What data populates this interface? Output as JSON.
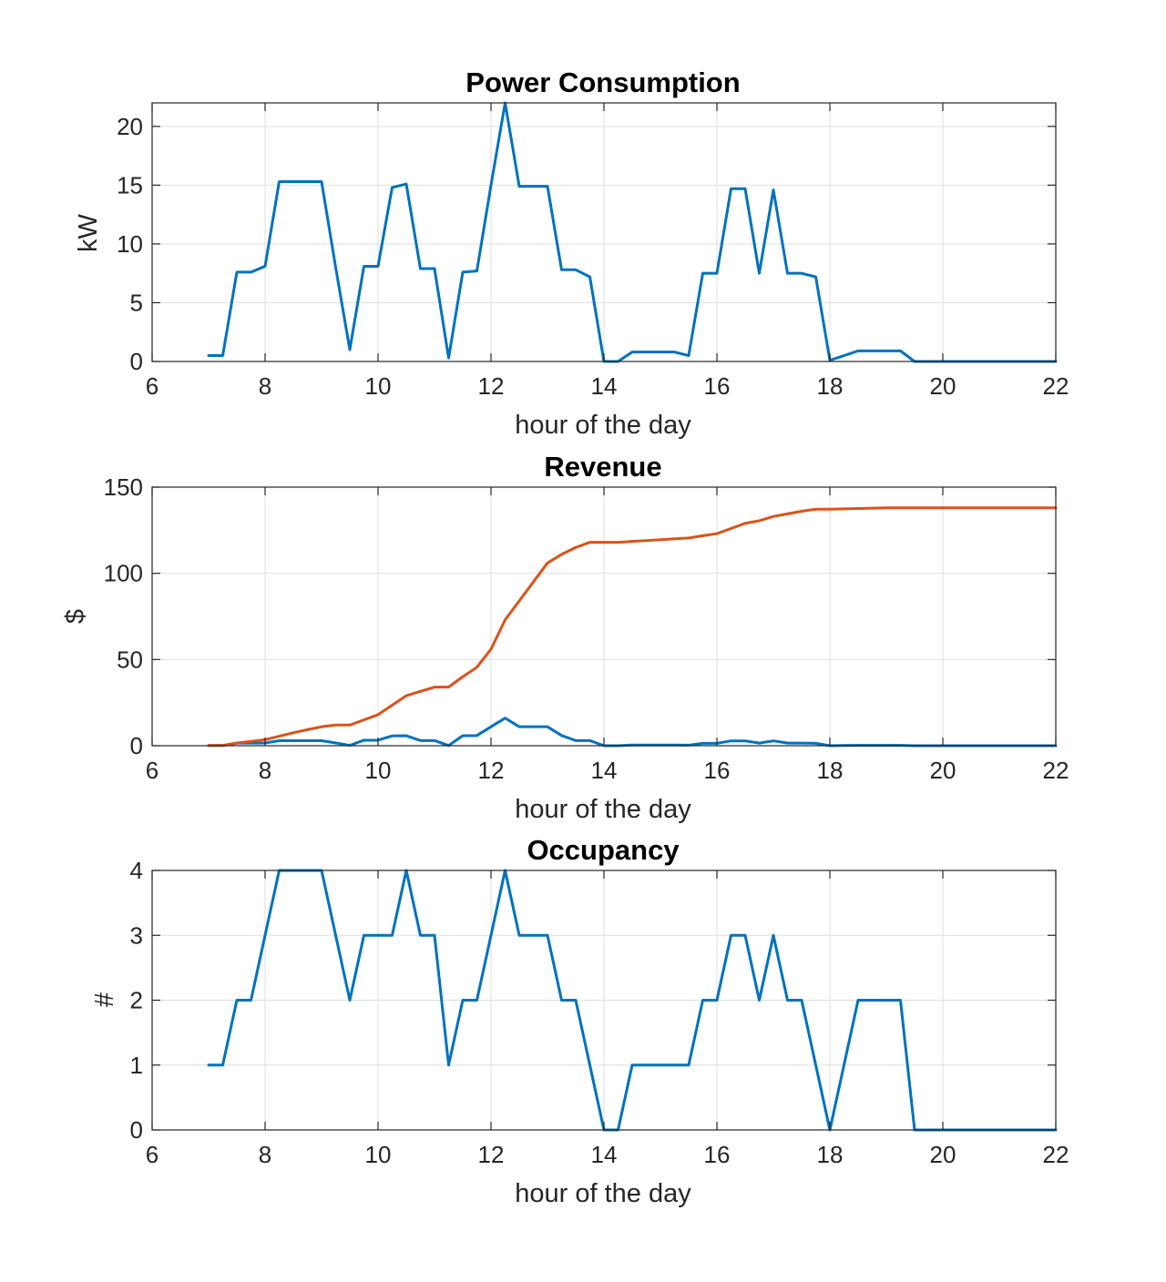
{
  "chart_data": [
    {
      "type": "line",
      "title": "Power Consumption",
      "xlabel": "hour of the day",
      "ylabel": "kW",
      "xlim": [
        6,
        22
      ],
      "ylim": [
        0,
        22
      ],
      "xticks": [
        6,
        8,
        10,
        12,
        14,
        16,
        18,
        20,
        22
      ],
      "yticks": [
        0,
        5,
        10,
        15,
        20
      ],
      "grid": true,
      "series": [
        {
          "color": "#0072BD",
          "x": [
            7,
            7.25,
            7.5,
            7.75,
            8,
            8.25,
            8.5,
            8.75,
            9,
            9.25,
            9.5,
            9.75,
            10,
            10.25,
            10.5,
            10.75,
            11,
            11.25,
            11.5,
            11.75,
            12,
            12.25,
            12.5,
            12.75,
            13,
            13.25,
            13.5,
            13.75,
            14,
            14.25,
            14.5,
            14.75,
            15,
            15.25,
            15.5,
            15.75,
            16,
            16.25,
            16.5,
            16.75,
            17,
            17.25,
            17.5,
            17.75,
            18,
            18.25,
            18.5,
            18.75,
            19,
            19.25,
            19.5,
            19.75,
            20,
            20.25,
            20.5,
            20.75,
            21,
            21.25,
            21.5,
            21.75,
            22
          ],
          "y": [
            0.5,
            0.5,
            7.6,
            7.6,
            8.1,
            15.3,
            15.3,
            15.3,
            15.3,
            8.0,
            1.0,
            8.1,
            8.1,
            14.8,
            15.1,
            7.9,
            7.9,
            0.3,
            7.6,
            7.7,
            15.0,
            22.0,
            14.9,
            14.9,
            14.9,
            7.8,
            7.8,
            7.2,
            0.0,
            0.0,
            0.8,
            0.8,
            0.8,
            0.8,
            0.5,
            7.5,
            7.5,
            14.7,
            14.7,
            7.5,
            14.6,
            7.5,
            7.5,
            7.2,
            0.1,
            0.5,
            0.9,
            0.9,
            0.9,
            0.9,
            0.0,
            0.0,
            0.0,
            0.0,
            0.0,
            0.0,
            0.0,
            0.0,
            0.0,
            0.0,
            0.0
          ]
        }
      ]
    },
    {
      "type": "line",
      "title": "Revenue",
      "xlabel": "hour of the day",
      "ylabel": "$",
      "xlim": [
        6,
        22
      ],
      "ylim": [
        0,
        150
      ],
      "xticks": [
        6,
        8,
        10,
        12,
        14,
        16,
        18,
        20,
        22
      ],
      "yticks": [
        0,
        50,
        100,
        150
      ],
      "grid": true,
      "series": [
        {
          "color": "#0072BD",
          "x": [
            7,
            7.25,
            7.5,
            7.75,
            8,
            8.25,
            8.5,
            8.75,
            9,
            9.25,
            9.5,
            9.75,
            10,
            10.25,
            10.5,
            10.75,
            11,
            11.25,
            11.5,
            11.75,
            12,
            12.25,
            12.5,
            12.75,
            13,
            13.25,
            13.5,
            13.75,
            14,
            14.25,
            14.5,
            14.75,
            15,
            15.25,
            15.5,
            15.75,
            16,
            16.25,
            16.5,
            16.75,
            17,
            17.25,
            17.5,
            17.75,
            18,
            18.25,
            18.5,
            18.75,
            19,
            19.25,
            19.5,
            19.75,
            20,
            20.25,
            20.5,
            20.75,
            21,
            21.25,
            21.5,
            21.75,
            22
          ],
          "y": [
            0.1,
            0.1,
            1.5,
            1.5,
            1.6,
            2.9,
            2.9,
            2.9,
            2.9,
            1.6,
            0.2,
            3.2,
            3.2,
            5.7,
            5.8,
            3.0,
            3.0,
            0.1,
            5.8,
            5.9,
            11.0,
            16.0,
            11.0,
            11.0,
            11.0,
            5.9,
            3.0,
            3.0,
            0.0,
            0.0,
            0.4,
            0.4,
            0.4,
            0.4,
            0.3,
            1.4,
            1.4,
            2.8,
            2.8,
            1.5,
            2.8,
            1.5,
            1.5,
            1.4,
            0.0,
            0.1,
            0.2,
            0.2,
            0.2,
            0.2,
            0.0,
            0.0,
            0.0,
            0.0,
            0.0,
            0.0,
            0.0,
            0.0,
            0.0,
            0.0,
            0.0
          ]
        },
        {
          "color": "#D95319",
          "x": [
            7,
            7.25,
            7.5,
            7.75,
            8,
            8.25,
            8.5,
            8.75,
            9,
            9.25,
            9.5,
            9.75,
            10,
            10.25,
            10.5,
            10.75,
            11,
            11.25,
            11.5,
            11.75,
            12,
            12.25,
            12.5,
            12.75,
            13,
            13.25,
            13.5,
            13.75,
            14,
            14.25,
            14.5,
            14.75,
            15,
            15.25,
            15.5,
            15.75,
            16,
            16.25,
            16.5,
            16.75,
            17,
            17.25,
            17.5,
            17.75,
            18,
            18.25,
            18.5,
            18.75,
            19,
            19.25,
            19.5,
            19.75,
            20,
            20.25,
            20.5,
            20.75,
            21,
            21.25,
            21.5,
            21.75,
            22
          ],
          "y": [
            0.1,
            0.2,
            1.5,
            2.5,
            3.5,
            5.5,
            7.5,
            9.3,
            11.0,
            12.0,
            12.0,
            15.0,
            18.0,
            23.5,
            29.0,
            31.5,
            34.0,
            34.0,
            40.0,
            45.5,
            56.0,
            73.0,
            84.0,
            95.0,
            106.0,
            111.0,
            115.0,
            118.0,
            118.0,
            118.0,
            118.5,
            119.0,
            119.5,
            120.0,
            120.5,
            121.8,
            123.0,
            126.0,
            129.0,
            130.5,
            133.0,
            134.5,
            136.0,
            137.2,
            137.2,
            137.4,
            137.6,
            137.8,
            138.0,
            138.0,
            138.0,
            138.0,
            138.0,
            138.0,
            138.0,
            138.0,
            138.0,
            138.0,
            138.0,
            138.0,
            138.0
          ]
        }
      ]
    },
    {
      "type": "line",
      "title": "Occupancy",
      "xlabel": "hour of the day",
      "ylabel": "#",
      "xlim": [
        6,
        22
      ],
      "ylim": [
        0,
        4
      ],
      "xticks": [
        6,
        8,
        10,
        12,
        14,
        16,
        18,
        20,
        22
      ],
      "yticks": [
        0,
        1,
        2,
        3,
        4
      ],
      "grid": true,
      "series": [
        {
          "color": "#0072BD",
          "x": [
            7,
            7.25,
            7.5,
            7.75,
            8,
            8.25,
            8.5,
            8.75,
            9,
            9.25,
            9.5,
            9.75,
            10,
            10.25,
            10.5,
            10.75,
            11,
            11.25,
            11.5,
            11.75,
            12,
            12.25,
            12.5,
            12.75,
            13,
            13.25,
            13.5,
            13.75,
            14,
            14.25,
            14.5,
            14.75,
            15,
            15.25,
            15.5,
            15.75,
            16,
            16.25,
            16.5,
            16.75,
            17,
            17.25,
            17.5,
            17.75,
            18,
            18.25,
            18.5,
            18.75,
            19,
            19.25,
            19.5,
            19.75,
            20,
            20.25,
            20.5,
            20.75,
            21,
            21.25,
            21.5,
            21.75,
            22
          ],
          "y": [
            1,
            1,
            2,
            2,
            3,
            4,
            4,
            4,
            4,
            3,
            2,
            3,
            3,
            3,
            4,
            3,
            3,
            1,
            2,
            2,
            3,
            4,
            3,
            3,
            3,
            2,
            2,
            1,
            0,
            0,
            1,
            1,
            1,
            1,
            1,
            2,
            2,
            3,
            3,
            2,
            3,
            2,
            2,
            1,
            0,
            1,
            2,
            2,
            2,
            2,
            0,
            0,
            0,
            0,
            0,
            0,
            0,
            0,
            0,
            0,
            0
          ]
        }
      ]
    }
  ]
}
